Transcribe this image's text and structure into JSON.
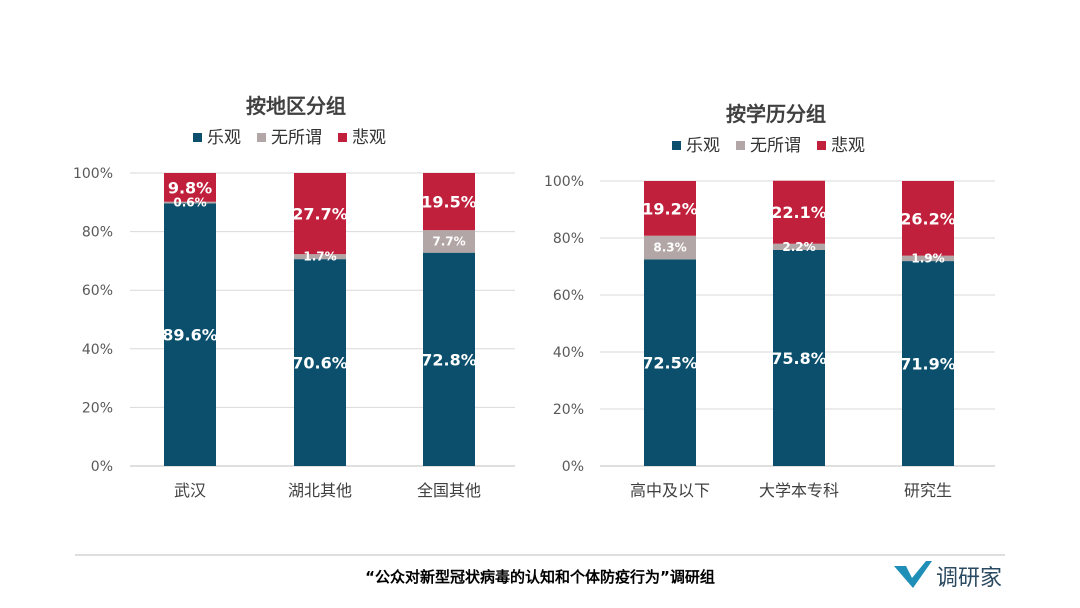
{
  "colors": {
    "optimistic": "#0b4f6c",
    "neutral": "#b3a6a6",
    "pessimistic": "#c0203b",
    "grid": "#d9d9d9"
  },
  "chart_data": [
    {
      "type": "bar",
      "stacked": true,
      "title": "按地区分组",
      "legend": [
        "乐观",
        "无所谓",
        "悲观"
      ],
      "legend_position": "top",
      "categories": [
        "武汉",
        "湖北其他",
        "全国其他"
      ],
      "series": [
        {
          "name": "乐观",
          "values": [
            89.6,
            70.6,
            72.8
          ],
          "labels": [
            "89.6%",
            "70.6%",
            "72.8%"
          ]
        },
        {
          "name": "无所谓",
          "values": [
            0.6,
            1.7,
            7.7
          ],
          "labels": [
            "0.6%",
            "1.7%",
            "7.7%"
          ]
        },
        {
          "name": "悲观",
          "values": [
            9.8,
            27.7,
            19.5
          ],
          "labels": [
            "9.8%",
            "27.7%",
            "19.5%"
          ]
        }
      ],
      "yticks": [
        "0%",
        "20%",
        "40%",
        "60%",
        "80%",
        "100%"
      ],
      "ylim": [
        0,
        100
      ],
      "grid": true
    },
    {
      "type": "bar",
      "stacked": true,
      "title": "按学历分组",
      "legend": [
        "乐观",
        "无所谓",
        "悲观"
      ],
      "legend_position": "top",
      "categories": [
        "高中及以下",
        "大学本专科",
        "研究生"
      ],
      "series": [
        {
          "name": "乐观",
          "values": [
            72.5,
            75.8,
            71.9
          ],
          "labels": [
            "72.5%",
            "75.8%",
            "71.9%"
          ]
        },
        {
          "name": "无所谓",
          "values": [
            8.3,
            2.2,
            1.9
          ],
          "labels": [
            "8.3%",
            "2.2%",
            "1.9%"
          ]
        },
        {
          "name": "悲观",
          "values": [
            19.2,
            22.1,
            26.2
          ],
          "labels": [
            "19.2%",
            "22.1%",
            "26.2%"
          ]
        }
      ],
      "yticks": [
        "0%",
        "20%",
        "40%",
        "60%",
        "80%",
        "100%"
      ],
      "ylim": [
        0,
        100
      ],
      "grid": true
    }
  ],
  "footer": {
    "caption": "“公众对新型冠状病毒的认知和个体防疫行为”调研组",
    "brand": "调研家"
  }
}
